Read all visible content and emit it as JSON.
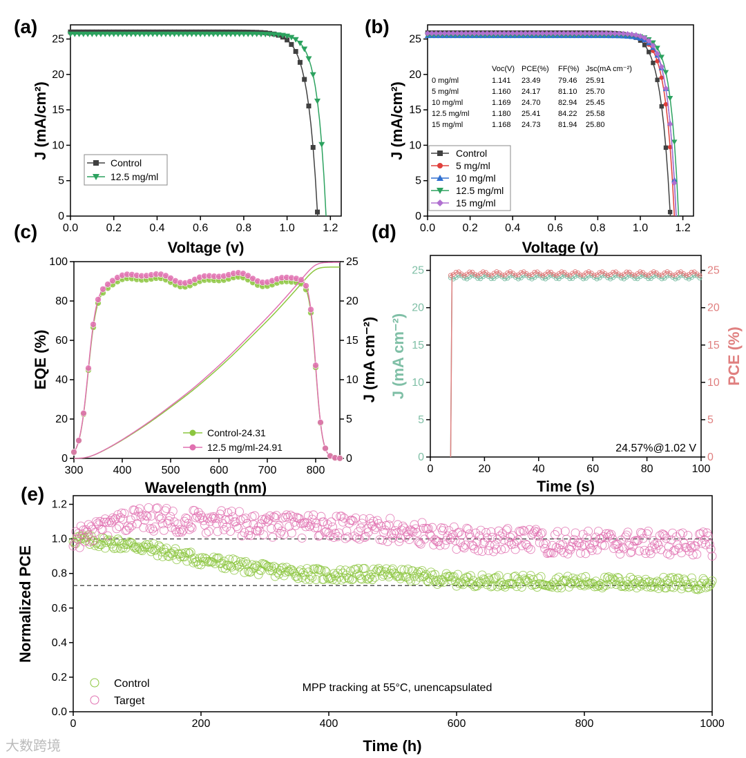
{
  "watermark": "大数跨境",
  "colors": {
    "control": "#404040",
    "green": "#2ca25f",
    "red": "#e0403c",
    "blue": "#2f6fd0",
    "purple": "#b070d0",
    "lime": "#8cc63f",
    "pink": "#e070b0",
    "jteal": "#7fbfa6",
    "pcepink": "#e08080",
    "dash": "#555555"
  },
  "chart_data": [
    {
      "id": "a",
      "panel_label": "(a)",
      "type": "line",
      "xlabel": "Voltage (v)",
      "ylabel": "J (mA/cm²)",
      "xlim": [
        0,
        1.25
      ],
      "ylim": [
        0,
        27
      ],
      "xticks": [
        0.0,
        0.2,
        0.4,
        0.6,
        0.8,
        1.0,
        1.2
      ],
      "yticks": [
        0,
        5,
        10,
        15,
        20,
        25
      ],
      "xtick_labels": [
        "0.0",
        "0.2",
        "0.4",
        "0.6",
        "0.8",
        "1.0",
        "1.2"
      ],
      "ytick_labels": [
        "0",
        "5",
        "10",
        "15",
        "20",
        "25"
      ],
      "series": [
        {
          "name": "Control",
          "color": "#404040",
          "marker": "square",
          "jsc": 26.0,
          "voc": 1.141,
          "n": 0.045
        },
        {
          "name": "12.5 mg/ml",
          "color": "#2ca25f",
          "marker": "tri-down",
          "jsc": 25.7,
          "voc": 1.18,
          "n": 0.04
        }
      ]
    },
    {
      "id": "b",
      "panel_label": "(b)",
      "type": "line",
      "xlabel": "Voltage (v)",
      "ylabel": "J (mA/cm²)",
      "xlim": [
        0,
        1.25
      ],
      "ylim": [
        0,
        27
      ],
      "xticks": [
        0.0,
        0.2,
        0.4,
        0.6,
        0.8,
        1.0,
        1.2
      ],
      "yticks": [
        0,
        5,
        10,
        15,
        20,
        25
      ],
      "xtick_labels": [
        "0.0",
        "0.2",
        "0.4",
        "0.6",
        "0.8",
        "1.0",
        "1.2"
      ],
      "ytick_labels": [
        "0",
        "5",
        "10",
        "15",
        "20",
        "25"
      ],
      "series": [
        {
          "name": "Control",
          "color": "#404040",
          "marker": "square",
          "jsc": 25.91,
          "voc": 1.141,
          "n": 0.045
        },
        {
          "name": "5 mg/ml",
          "color": "#e0403c",
          "marker": "circle",
          "jsc": 25.7,
          "voc": 1.16,
          "n": 0.042
        },
        {
          "name": "10 mg/ml",
          "color": "#2f6fd0",
          "marker": "tri-up",
          "jsc": 25.45,
          "voc": 1.169,
          "n": 0.04
        },
        {
          "name": "12.5 mg/ml",
          "color": "#2ca25f",
          "marker": "tri-down",
          "jsc": 25.58,
          "voc": 1.18,
          "n": 0.038
        },
        {
          "name": "15 mg/ml",
          "color": "#b070d0",
          "marker": "diamond",
          "jsc": 25.8,
          "voc": 1.168,
          "n": 0.04
        }
      ],
      "table": {
        "headers": [
          "",
          "Voc(V)",
          "PCE(%)",
          "FF(%)",
          "Jsc(mA cm⁻²)"
        ],
        "rows": [
          [
            "0 mg/ml",
            "1.141",
            "23.49",
            "79.46",
            "25.91"
          ],
          [
            "5 mg/ml",
            "1.160",
            "24.17",
            "81.10",
            "25.70"
          ],
          [
            "10 mg/ml",
            "1.169",
            "24.70",
            "82.94",
            "25.45"
          ],
          [
            "12.5 mg/ml",
            "1.180",
            "25.41",
            "84.22",
            "25.58"
          ],
          [
            "15 mg/ml",
            "1.168",
            "24.73",
            "81.94",
            "25.80"
          ]
        ]
      }
    },
    {
      "id": "c",
      "panel_label": "(c)",
      "type": "line",
      "xlabel": "Wavelength (nm)",
      "ylabel": "EQE (%)",
      "y2label": "J (mA cm⁻²)",
      "xlim": [
        300,
        850
      ],
      "ylim": [
        0,
        100
      ],
      "y2lim": [
        0,
        25
      ],
      "xticks": [
        300,
        400,
        500,
        600,
        700,
        800
      ],
      "yticks": [
        0,
        20,
        40,
        60,
        80,
        100
      ],
      "y2ticks": [
        0,
        5,
        10,
        15,
        20,
        25
      ],
      "xtick_labels": [
        "300",
        "400",
        "500",
        "600",
        "700",
        "800"
      ],
      "ytick_labels": [
        "0",
        "20",
        "40",
        "60",
        "80",
        "100"
      ],
      "y2tick_labels": [
        "0",
        "5",
        "10",
        "15",
        "20",
        "25"
      ],
      "series": [
        {
          "name": "Control-24.31",
          "color": "#8cc63f",
          "integrated_J": 24.31,
          "plateau": 90
        },
        {
          "name": "12.5 mg/ml-24.91",
          "color": "#e070b0",
          "integrated_J": 24.91,
          "plateau": 92
        }
      ]
    },
    {
      "id": "d",
      "panel_label": "(d)",
      "type": "line",
      "xlabel": "Time (s)",
      "ylabel": "J (mA cm⁻²)",
      "y2label": "PCE (%)",
      "xlim": [
        0,
        100
      ],
      "ylim": [
        0,
        27
      ],
      "y2lim": [
        0,
        27
      ],
      "xticks": [
        0,
        20,
        40,
        60,
        80,
        100
      ],
      "yticks": [
        0,
        5,
        10,
        15,
        20,
        25
      ],
      "y2ticks": [
        0,
        5,
        10,
        15,
        20,
        25
      ],
      "xtick_labels": [
        "0",
        "20",
        "40",
        "60",
        "80",
        "100"
      ],
      "ytick_labels": [
        "0",
        "5",
        "10",
        "15",
        "20",
        "25"
      ],
      "y2tick_labels": [
        "0",
        "5",
        "10",
        "15",
        "20",
        "25"
      ],
      "series": [
        {
          "name": "J",
          "color": "#7fbfa6",
          "start_s": 7.5,
          "steady": 24.1
        },
        {
          "name": "PCE",
          "color": "#e08080",
          "start_s": 7.5,
          "steady": 24.57
        }
      ],
      "annotation": "24.57%@1.02 V"
    },
    {
      "id": "e",
      "panel_label": "(e)",
      "type": "scatter",
      "xlabel": "Time (h)",
      "ylabel": "Normalized PCE",
      "xlim": [
        0,
        1000
      ],
      "ylim": [
        0,
        1.25
      ],
      "xticks": [
        0,
        200,
        400,
        600,
        800,
        1000
      ],
      "yticks": [
        0.0,
        0.2,
        0.4,
        0.6,
        0.8,
        1.0,
        1.2
      ],
      "xtick_labels": [
        "0",
        "200",
        "400",
        "600",
        "800",
        "1000"
      ],
      "ytick_labels": [
        "0.0",
        "0.2",
        "0.4",
        "0.6",
        "0.8",
        "1.0",
        "1.2"
      ],
      "reference_lines": [
        1.0,
        0.73
      ],
      "series": [
        {
          "name": "Control",
          "color": "#8cc63f",
          "trend": [
            [
              0,
              1.0
            ],
            [
              100,
              0.96
            ],
            [
              200,
              0.88
            ],
            [
              300,
              0.82
            ],
            [
              400,
              0.79
            ],
            [
              500,
              0.8
            ],
            [
              600,
              0.76
            ],
            [
              800,
              0.75
            ],
            [
              1000,
              0.74
            ]
          ],
          "spread": 0.035
        },
        {
          "name": "Target",
          "color": "#e070b0",
          "trend": [
            [
              0,
              1.0
            ],
            [
              100,
              1.12
            ],
            [
              200,
              1.1
            ],
            [
              300,
              1.08
            ],
            [
              400,
              1.07
            ],
            [
              500,
              1.05
            ],
            [
              600,
              1.0
            ],
            [
              800,
              0.98
            ],
            [
              1000,
              0.97
            ]
          ],
          "spread": 0.07
        }
      ],
      "annotation": "MPP tracking at 55°C, unencapsulated"
    }
  ]
}
